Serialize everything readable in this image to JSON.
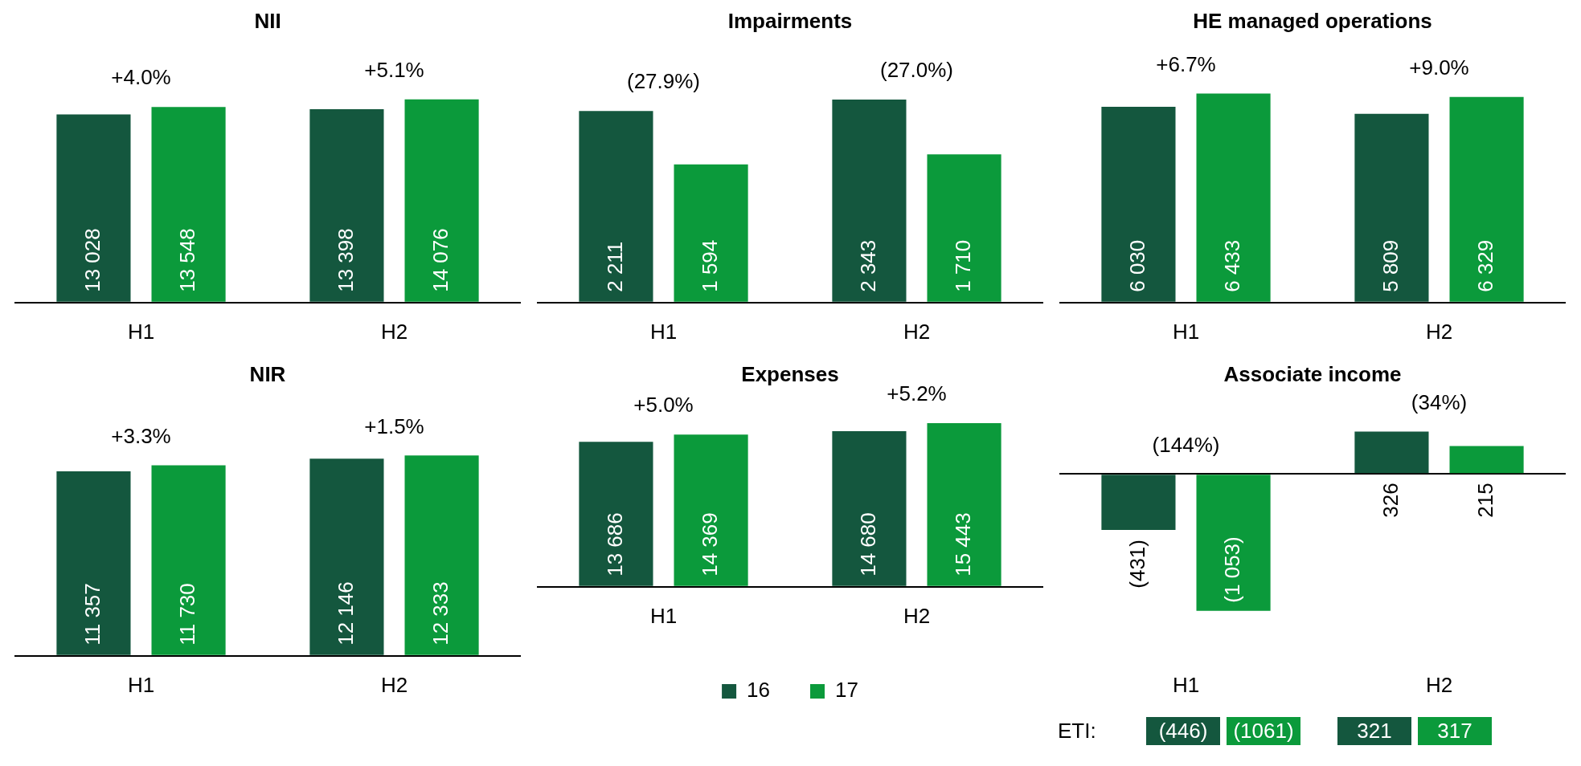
{
  "chart_data": [
    {
      "type": "bar",
      "title": "NII",
      "categories": [
        "H1",
        "H2"
      ],
      "series": [
        {
          "color": "#14573e",
          "values": [
            13028,
            13398
          ],
          "value_labels": [
            "13 028",
            "13 398"
          ]
        },
        {
          "color": "#0b9a3b",
          "values": [
            13548,
            14076
          ],
          "value_labels": [
            "13 548",
            "14 076"
          ]
        }
      ],
      "annotations": [
        "+4.0%",
        "+5.1%"
      ]
    },
    {
      "type": "bar",
      "title": "Impairments",
      "categories": [
        "H1",
        "H2"
      ],
      "series": [
        {
          "color": "#14573e",
          "values": [
            2211,
            2343
          ],
          "value_labels": [
            "2 211",
            "2 343"
          ]
        },
        {
          "color": "#0b9a3b",
          "values": [
            1594,
            1710
          ],
          "value_labels": [
            "1 594",
            "1 710"
          ]
        }
      ],
      "annotations": [
        "(27.9%)",
        "(27.0%)"
      ]
    },
    {
      "type": "bar",
      "title": "HE managed operations",
      "categories": [
        "H1",
        "H2"
      ],
      "series": [
        {
          "color": "#14573e",
          "values": [
            6030,
            5809
          ],
          "value_labels": [
            "6 030",
            "5 809"
          ]
        },
        {
          "color": "#0b9a3b",
          "values": [
            6433,
            6329
          ],
          "value_labels": [
            "6 433",
            "6 329"
          ]
        }
      ],
      "annotations": [
        "+6.7%",
        "+9.0%"
      ]
    },
    {
      "type": "bar",
      "title": "NIR",
      "categories": [
        "H1",
        "H2"
      ],
      "series": [
        {
          "color": "#14573e",
          "values": [
            11357,
            12146
          ],
          "value_labels": [
            "11 357",
            "12 146"
          ]
        },
        {
          "color": "#0b9a3b",
          "values": [
            11730,
            12333
          ],
          "value_labels": [
            "11 730",
            "12 333"
          ]
        }
      ],
      "annotations": [
        "+3.3%",
        "+1.5%"
      ]
    },
    {
      "type": "bar",
      "title": "Expenses",
      "categories": [
        "H1",
        "H2"
      ],
      "legend": "bottom",
      "series": [
        {
          "name": "16",
          "color": "#14573e",
          "values": [
            13686,
            14680
          ],
          "value_labels": [
            "13 686",
            "14 680"
          ]
        },
        {
          "name": "17",
          "color": "#0b9a3b",
          "values": [
            14369,
            15443
          ],
          "value_labels": [
            "14 369",
            "15 443"
          ]
        }
      ],
      "annotations": [
        "+5.0%",
        "+5.2%"
      ]
    },
    {
      "type": "bar",
      "title": "Associate income",
      "categories": [
        "H1",
        "H2"
      ],
      "series": [
        {
          "color": "#14573e",
          "values": [
            -431,
            326
          ],
          "value_labels": [
            "(431)",
            "326"
          ]
        },
        {
          "color": "#0b9a3b",
          "values": [
            -1053,
            215
          ],
          "value_labels": [
            "(1 053)",
            "215"
          ]
        }
      ],
      "annotations": [
        "(144%)",
        "(34%)",
        "ETI:",
        "(446)",
        "(1061)",
        "321",
        "317"
      ]
    }
  ]
}
